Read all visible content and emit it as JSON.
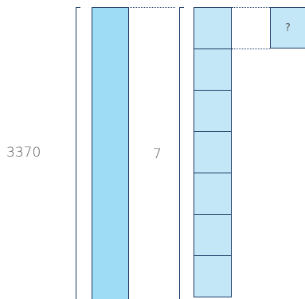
{
  "total": {
    "label": "3370"
  },
  "divisor": {
    "label": "7"
  },
  "unknown": {
    "label": "?"
  },
  "parts": {
    "count": 7
  },
  "colors": {
    "whole_bar_fill": "#9edcf6",
    "part_fill": "#c4e7f8",
    "outline": "#1d3b63",
    "text": "#5a5a5a"
  }
}
